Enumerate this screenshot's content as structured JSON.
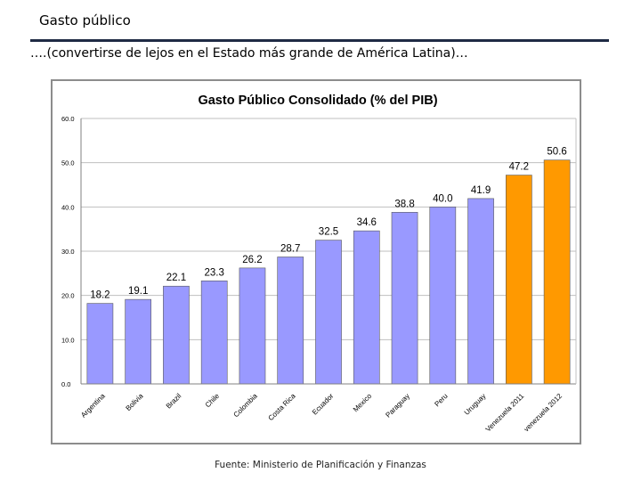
{
  "slide": {
    "title": "Gasto público",
    "subtitle": "….(convertirse de lejos en el Estado más grande de América Latina)…",
    "source": "Fuente: Ministerio de Planificación y Finanzas",
    "rule_color": "#1f2a44"
  },
  "chart_data": {
    "type": "bar",
    "title": "Gasto Público Consolidado (% del PIB)",
    "xlabel": "",
    "ylabel": "",
    "ylim": [
      0,
      60
    ],
    "yticks": [
      0,
      10,
      20,
      30,
      40,
      50,
      60
    ],
    "ytick_labels": [
      "0.0",
      "10.0",
      "20.0",
      "30.0",
      "40.0",
      "50.0",
      "60.0"
    ],
    "grid": true,
    "categories": [
      "Argentina",
      "Bolivia",
      "Brazil",
      "Chile",
      "Colombia",
      "Costa Rica",
      "Ecuador",
      "Mexico",
      "Paraguay",
      "Peru",
      "Uruguay",
      "Venezuela 2011",
      "venezuela 2012"
    ],
    "values": [
      18.2,
      19.1,
      22.1,
      23.3,
      26.2,
      28.7,
      32.5,
      34.6,
      38.8,
      40.0,
      41.9,
      47.2,
      50.6
    ],
    "value_labels": [
      "18.2",
      "19.1",
      "22.1",
      "23.3",
      "26.2",
      "28.7",
      "32.5",
      "34.6",
      "38.8",
      "40.0",
      "41.9",
      "47.2",
      "50.6"
    ],
    "colors": [
      "#9999ff",
      "#9999ff",
      "#9999ff",
      "#9999ff",
      "#9999ff",
      "#9999ff",
      "#9999ff",
      "#9999ff",
      "#9999ff",
      "#9999ff",
      "#9999ff",
      "#ff9900",
      "#ff9900"
    ],
    "gridline_color": "#bfbfbf",
    "plot_background": "#ffffff"
  }
}
